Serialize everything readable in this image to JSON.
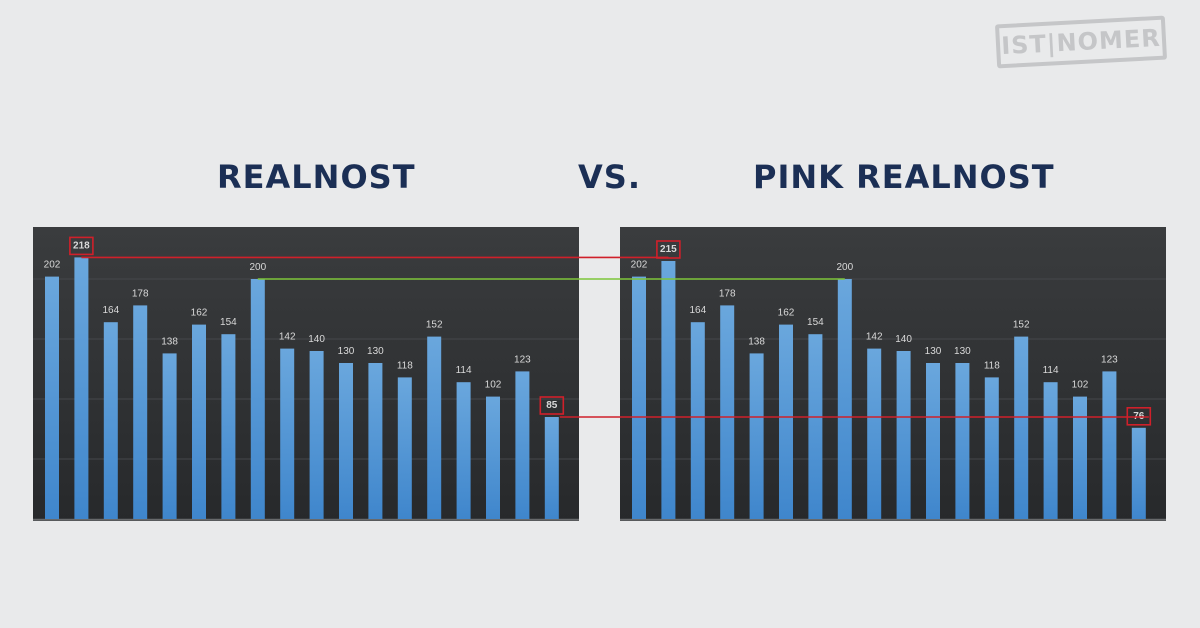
{
  "titles": {
    "left": "REALNOST",
    "vs": "VS.",
    "right": "PINK REALNOST"
  },
  "logo": {
    "text": "IST|NOMER"
  },
  "colors": {
    "background": "#e9eaeb",
    "title": "#1b2f55",
    "chart_bg": "#2f3133",
    "bar": "#5b9bd5",
    "label": "#d9d9d9",
    "highlight_red": "#d0202a",
    "highlight_green": "#7ec63a"
  },
  "chart_data": [
    {
      "type": "bar",
      "title": "REALNOST",
      "values": [
        202,
        218,
        164,
        178,
        138,
        162,
        154,
        200,
        142,
        140,
        130,
        130,
        118,
        152,
        114,
        102,
        123,
        85
      ],
      "highlighted": [
        1,
        17
      ],
      "ylim": [
        0,
        220
      ],
      "grid": true
    },
    {
      "type": "bar",
      "title": "PINK REALNOST",
      "values": [
        202,
        215,
        164,
        178,
        138,
        162,
        154,
        200,
        142,
        140,
        130,
        130,
        118,
        152,
        114,
        102,
        123,
        76
      ],
      "highlighted": [
        1,
        17
      ],
      "ylim": [
        0,
        220
      ],
      "grid": true
    }
  ]
}
